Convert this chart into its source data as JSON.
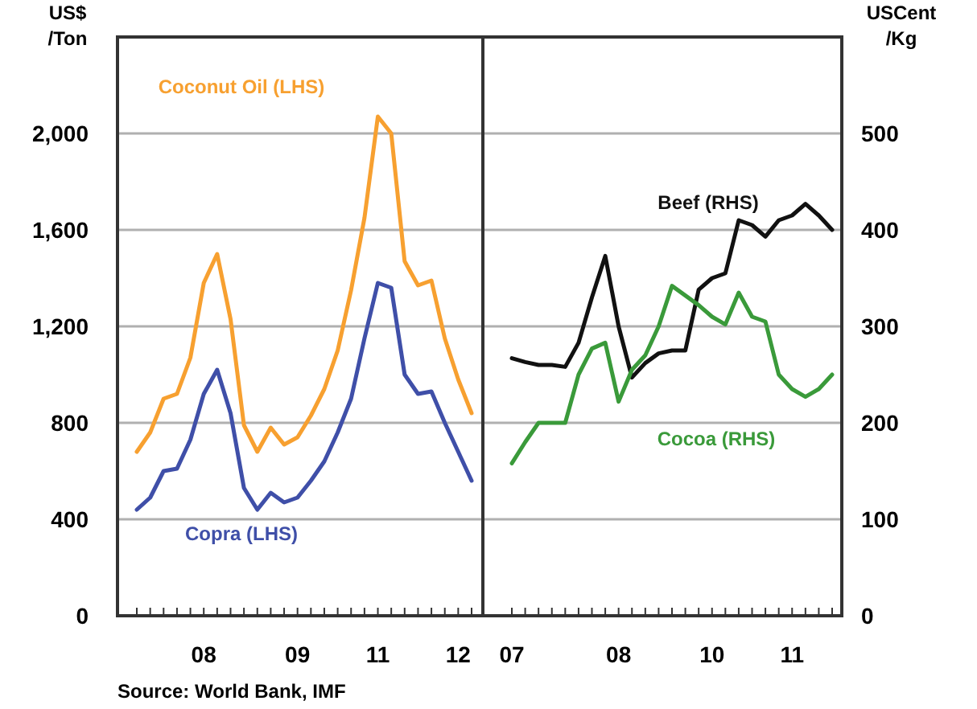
{
  "chart_data": [
    {
      "type": "line",
      "ylabel": "US$\n/Ton",
      "ylim": [
        0,
        2400
      ],
      "yticks": [
        0,
        400,
        800,
        {
          "value": 1200,
          "label": "1,200"
        },
        {
          "value": 1600,
          "label": "1,600"
        },
        {
          "value": 2000,
          "label": "2,000"
        }
      ],
      "grid": "y",
      "categories": [
        null,
        null,
        null,
        null,
        null,
        "08",
        null,
        null,
        null,
        null,
        null,
        null,
        "09",
        null,
        null,
        null,
        null,
        null,
        "11",
        null,
        null,
        null,
        null,
        null,
        "12",
        null
      ],
      "series": [
        {
          "name": "Coconut Oil (LHS)",
          "color": "#f7a030",
          "values": [
            680,
            760,
            900,
            920,
            1070,
            1380,
            1500,
            1230,
            790,
            680,
            780,
            710,
            740,
            830,
            940,
            1100,
            1350,
            1650,
            2070,
            2000,
            1470,
            1370,
            1390,
            1150,
            980,
            840
          ]
        },
        {
          "name": "Copra (LHS)",
          "color": "#3f4fa8",
          "values": [
            440,
            490,
            600,
            610,
            730,
            920,
            1020,
            840,
            530,
            440,
            510,
            470,
            490,
            560,
            640,
            760,
            900,
            1150,
            1380,
            1360,
            1000,
            920,
            930,
            800,
            680,
            560
          ]
        }
      ],
      "annotations": [
        "Source: World Bank, IMF"
      ]
    },
    {
      "type": "line",
      "ylabel": "USCent\n/Kg",
      "ylim": [
        0,
        600
      ],
      "yticks": [
        0,
        100,
        200,
        300,
        400,
        500
      ],
      "grid": "y",
      "categories": [
        "07",
        null,
        null,
        null,
        null,
        null,
        null,
        null,
        "08",
        null,
        null,
        null,
        null,
        null,
        null,
        "10",
        null,
        null,
        null,
        null,
        null,
        "11",
        null,
        null,
        null
      ],
      "series": [
        {
          "name": "Beef (RHS)",
          "color": "#111111",
          "values": [
            267,
            263,
            260,
            260,
            258,
            283,
            330,
            373,
            300,
            247,
            262,
            272,
            275,
            275,
            338,
            350,
            355,
            410,
            405,
            393,
            410,
            415,
            427,
            415,
            400
          ]
        },
        {
          "name": "Cocoa (RHS)",
          "color": "#3a9a3a",
          "values": [
            158,
            180,
            200,
            200,
            200,
            250,
            277,
            283,
            222,
            255,
            270,
            300,
            342,
            332,
            322,
            310,
            302,
            335,
            310,
            305,
            250,
            235,
            227,
            235,
            250
          ]
        }
      ]
    }
  ]
}
